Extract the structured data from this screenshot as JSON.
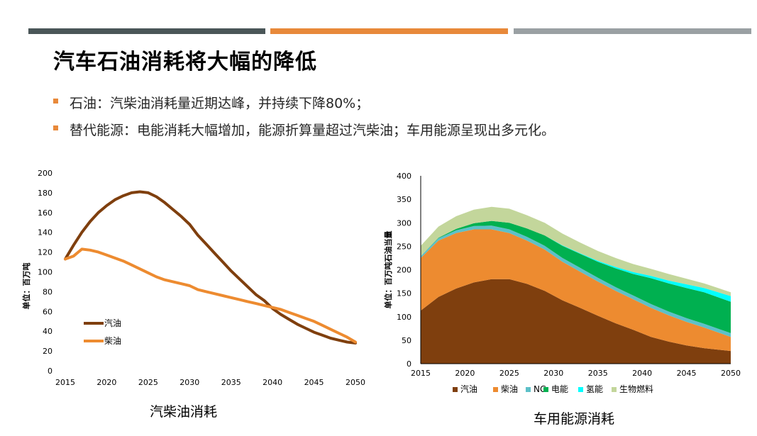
{
  "colors": {
    "bar1": "#4a5658",
    "bar2": "#e8893a",
    "bar3": "#9aa0a3",
    "bullet": "#e8893a",
    "gasoline": "#7f3f0e",
    "diesel": "#ed8b30",
    "ng": "#5dc0c8",
    "electric": "#00b050",
    "hydrogen": "#00ffff",
    "biofuel": "#c3d69b"
  },
  "slide": {
    "title": "汽车石油消耗将大幅的降低",
    "bullets": [
      "石油：汽柴油消耗量近期达峰，并持续下降80%；",
      "替代能源：电能消耗大幅增加，能源折算量超过汽柴油；车用能源呈现出多元化。"
    ]
  },
  "chart_data": [
    {
      "type": "line",
      "caption": "汽柴油消耗",
      "ylabel": "单位：百万吨",
      "ylim": [
        0,
        200
      ],
      "yticks": [
        0,
        20,
        40,
        60,
        80,
        100,
        120,
        140,
        160,
        180,
        200
      ],
      "xlim": [
        2015,
        2050
      ],
      "xticks": [
        2015,
        2020,
        2025,
        2030,
        2035,
        2040,
        2045,
        2050
      ],
      "legend_position": "bottom-left",
      "x": [
        2015,
        2016,
        2017,
        2018,
        2019,
        2020,
        2021,
        2022,
        2023,
        2024,
        2025,
        2026,
        2027,
        2028,
        2029,
        2030,
        2031,
        2032,
        2033,
        2034,
        2035,
        2036,
        2037,
        2038,
        2039,
        2040,
        2041,
        2042,
        2043,
        2044,
        2045,
        2046,
        2047,
        2048,
        2049,
        2050
      ],
      "series": [
        {
          "name": "汽油",
          "color_key": "gasoline",
          "values": [
            113,
            127,
            140,
            151,
            160,
            167,
            173,
            177,
            180,
            181,
            180,
            176,
            170,
            163,
            156,
            148,
            137,
            128,
            119,
            110,
            101,
            93,
            85,
            77,
            71,
            63,
            57,
            52,
            47,
            43,
            39,
            36,
            33,
            31,
            29,
            28
          ]
        },
        {
          "name": "柴油",
          "color_key": "diesel",
          "values": [
            113,
            116,
            123,
            122,
            120,
            117,
            114,
            111,
            107,
            103,
            99,
            95,
            92,
            90,
            88,
            86,
            82,
            80,
            78,
            76,
            74,
            72,
            70,
            68,
            66,
            64,
            62,
            59,
            56,
            53,
            50,
            46,
            42,
            38,
            34,
            29
          ]
        }
      ]
    },
    {
      "type": "area",
      "stacked": true,
      "caption": "车用能源消耗",
      "ylabel": "单位：百万吨石油当量",
      "ylim": [
        0,
        400
      ],
      "yticks": [
        0,
        50,
        100,
        150,
        200,
        250,
        300,
        350,
        400
      ],
      "xlim": [
        2015,
        2050
      ],
      "xticks": [
        2015,
        2020,
        2025,
        2030,
        2035,
        2040,
        2045,
        2050
      ],
      "legend_position": "bottom",
      "x": [
        2015,
        2017,
        2019,
        2021,
        2023,
        2025,
        2027,
        2029,
        2031,
        2033,
        2035,
        2037,
        2039,
        2041,
        2043,
        2045,
        2047,
        2050
      ],
      "series": [
        {
          "name": "汽油",
          "color_key": "gasoline",
          "values": [
            113,
            142,
            160,
            173,
            180,
            180,
            170,
            155,
            135,
            119,
            102,
            86,
            72,
            57,
            47,
            39,
            33,
            27
          ]
        },
        {
          "name": "柴油",
          "color_key": "diesel",
          "values": [
            112,
            120,
            118,
            113,
            106,
            98,
            92,
            88,
            82,
            77,
            73,
            69,
            65,
            62,
            56,
            50,
            44,
            30
          ]
        },
        {
          "name": "NG",
          "color_key": "ng",
          "values": [
            4,
            5,
            6,
            7,
            8,
            8,
            8,
            8,
            8,
            8,
            8,
            8,
            8,
            8,
            8,
            8,
            8,
            8
          ]
        },
        {
          "name": "电能",
          "color_key": "electric",
          "values": [
            0,
            1,
            3,
            6,
            10,
            14,
            18,
            22,
            26,
            30,
            34,
            40,
            46,
            55,
            60,
            64,
            67,
            67
          ]
        },
        {
          "name": "氢能",
          "color_key": "hydrogen",
          "values": [
            0,
            0,
            0,
            0,
            0,
            0,
            0,
            0,
            1,
            1,
            2,
            3,
            4,
            5,
            6,
            8,
            9,
            12
          ]
        },
        {
          "name": "生物燃料",
          "color_key": "biofuel",
          "values": [
            22,
            24,
            27,
            29,
            30,
            30,
            28,
            27,
            25,
            23,
            21,
            19,
            17,
            15,
            14,
            12,
            10,
            8
          ]
        }
      ]
    }
  ]
}
